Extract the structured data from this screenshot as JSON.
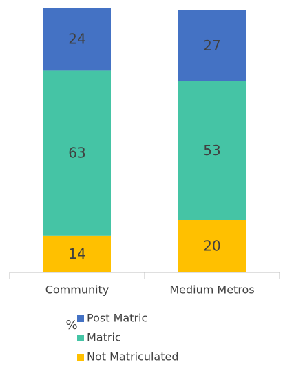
{
  "chart_data": {
    "type": "stacked_bar",
    "categories": [
      "Community",
      "Medium Metros"
    ],
    "series": [
      {
        "name": "Not Matriculated",
        "color": "#ffc000",
        "values": [
          14,
          20
        ]
      },
      {
        "name": "Matric",
        "color": "#45c4a5",
        "values": [
          63,
          53
        ]
      },
      {
        "name": "Post Matric",
        "color": "#4472c4",
        "values": [
          24,
          27
        ]
      }
    ],
    "ylim": [
      0,
      100
    ],
    "legend_title": "%",
    "legend": "bottom"
  }
}
